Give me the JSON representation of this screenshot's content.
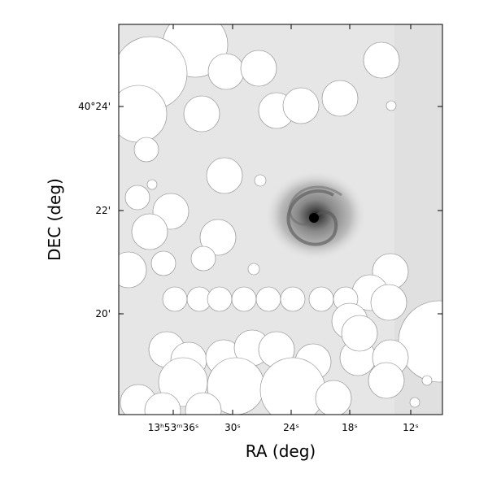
{
  "axes": {
    "x_label": "RA (deg)",
    "y_label": "DEC (deg)",
    "x_ticks": [
      "13ʰ53ᵐ36ˢ",
      "30ˢ",
      "24ˢ",
      "18ˢ",
      "12ˢ"
    ],
    "y_ticks": [
      "40°24'",
      "22'",
      "20'"
    ]
  }
}
